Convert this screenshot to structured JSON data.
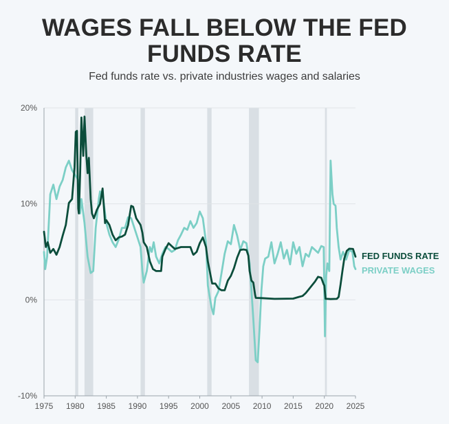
{
  "title_line1": "WAGES FALL BELOW THE FED",
  "title_line2": "FUNDS RATE",
  "subtitle": "Fed funds rate vs. private industries wages and salaries",
  "colors": {
    "fed": "#0b4d3b",
    "wages": "#7ccfc6",
    "recession": "#d9dfe4",
    "grid": "#dfe3e7",
    "axis": "#9aa3aa"
  },
  "chart_data": {
    "type": "line",
    "title": "WAGES FALL BELOW THE FED FUNDS RATE",
    "subtitle": "Fed funds rate vs. private industries wages and salaries",
    "xlim": [
      1975,
      2025
    ],
    "ylim": [
      -10,
      20
    ],
    "x_ticks": [
      1975,
      1980,
      1985,
      1990,
      1995,
      2000,
      2005,
      2010,
      2015,
      2020,
      2025
    ],
    "y_ticks": [
      {
        "v": 20,
        "label": "20%"
      },
      {
        "v": 10,
        "label": "10%"
      },
      {
        "v": 0,
        "label": "0%"
      },
      {
        "v": -10,
        "label": "-10%"
      }
    ],
    "grid": true,
    "recessions": [
      [
        1980.0,
        1980.5
      ],
      [
        1981.5,
        1982.9
      ],
      [
        1990.5,
        1991.2
      ],
      [
        2001.2,
        2001.9
      ],
      [
        2007.9,
        2009.5
      ],
      [
        2020.1,
        2020.4
      ]
    ],
    "series": [
      {
        "name": "FED FUNDS RATE",
        "color": "#0b4d3b",
        "x": [
          1975.0,
          1975.3,
          1975.6,
          1976.0,
          1976.5,
          1977.0,
          1977.5,
          1978.0,
          1978.5,
          1979.0,
          1979.5,
          1979.9,
          1980.1,
          1980.3,
          1980.5,
          1980.6,
          1980.8,
          1981.0,
          1981.3,
          1981.5,
          1981.8,
          1982.0,
          1982.2,
          1982.5,
          1982.7,
          1983.0,
          1983.5,
          1984.0,
          1984.4,
          1984.8,
          1985.0,
          1985.5,
          1986.0,
          1986.5,
          1987.0,
          1987.5,
          1988.0,
          1988.5,
          1989.0,
          1989.3,
          1989.8,
          1990.5,
          1990.8,
          1991.0,
          1991.5,
          1992.0,
          1992.5,
          1993.0,
          1993.8,
          1994.0,
          1994.5,
          1995.0,
          1995.5,
          1996.0,
          1997.0,
          1998.0,
          1998.5,
          1998.9,
          1999.0,
          1999.5,
          2000.0,
          2000.5,
          2001.0,
          2001.3,
          2001.6,
          2001.9,
          2002.0,
          2002.5,
          2003.0,
          2003.5,
          2004.0,
          2004.5,
          2005.0,
          2005.5,
          2006.0,
          2006.5,
          2007.0,
          2007.5,
          2007.8,
          2008.0,
          2008.3,
          2008.6,
          2008.9,
          2009.0,
          2010.0,
          2012.0,
          2015.0,
          2015.9,
          2016.5,
          2017.0,
          2017.5,
          2018.0,
          2018.5,
          2019.0,
          2019.5,
          2019.9,
          2020.0,
          2020.2,
          2020.5,
          2021.0,
          2022.0,
          2022.3,
          2022.6,
          2022.9,
          2023.2,
          2023.6,
          2024.0,
          2024.6,
          2024.9,
          2025.0
        ],
        "values": [
          7.1,
          5.5,
          6.0,
          4.9,
          5.3,
          4.7,
          5.5,
          6.7,
          7.8,
          10.1,
          10.5,
          13.8,
          17.5,
          17.6,
          9.5,
          9.0,
          13.0,
          19.0,
          15.0,
          19.1,
          15.0,
          13.2,
          14.8,
          10.5,
          9.0,
          8.5,
          9.4,
          10.0,
          11.6,
          8.0,
          8.3,
          7.8,
          6.8,
          6.2,
          6.5,
          6.6,
          6.8,
          7.8,
          9.8,
          9.7,
          8.5,
          7.8,
          7.0,
          6.0,
          5.5,
          4.0,
          3.2,
          3.0,
          3.0,
          4.5,
          5.3,
          5.9,
          5.6,
          5.3,
          5.5,
          5.5,
          5.5,
          4.8,
          4.7,
          5.0,
          5.9,
          6.5,
          5.5,
          4.0,
          3.0,
          2.0,
          1.7,
          1.7,
          1.2,
          1.0,
          1.0,
          2.0,
          2.5,
          3.3,
          4.4,
          5.2,
          5.25,
          5.2,
          4.6,
          3.0,
          2.0,
          1.8,
          0.5,
          0.2,
          0.18,
          0.1,
          0.13,
          0.3,
          0.4,
          0.7,
          1.1,
          1.5,
          1.9,
          2.4,
          2.3,
          1.6,
          1.5,
          0.1,
          0.1,
          0.08,
          0.1,
          0.3,
          1.6,
          3.0,
          4.3,
          5.1,
          5.33,
          5.3,
          4.7,
          4.5
        ]
      },
      {
        "name": "PRIVATE WAGES",
        "color": "#7ccfc6",
        "x": [
          1975.0,
          1975.2,
          1975.5,
          1976.0,
          1976.5,
          1977.0,
          1977.5,
          1978.0,
          1978.5,
          1979.0,
          1979.5,
          1980.0,
          1980.5,
          1980.8,
          1981.0,
          1981.5,
          1982.0,
          1982.5,
          1982.9,
          1983.3,
          1983.8,
          1984.0,
          1984.5,
          1985.0,
          1985.5,
          1986.0,
          1986.5,
          1987.0,
          1987.5,
          1988.0,
          1988.5,
          1989.0,
          1989.5,
          1990.0,
          1990.5,
          1990.8,
          1991.0,
          1991.5,
          1992.0,
          1992.3,
          1992.6,
          1993.0,
          1993.5,
          1994.0,
          1994.5,
          1995.0,
          1995.5,
          1996.0,
          1996.5,
          1997.0,
          1997.5,
          1998.0,
          1998.5,
          1999.0,
          1999.5,
          2000.0,
          2000.5,
          2001.0,
          2001.3,
          2001.6,
          2001.9,
          2002.2,
          2002.5,
          2003.0,
          2003.5,
          2004.0,
          2004.5,
          2005.0,
          2005.5,
          2006.0,
          2006.5,
          2007.0,
          2007.5,
          2008.0,
          2008.3,
          2008.6,
          2009.0,
          2009.3,
          2009.6,
          2009.9,
          2010.2,
          2010.5,
          2011.0,
          2011.5,
          2012.0,
          2012.5,
          2013.0,
          2013.5,
          2014.0,
          2014.5,
          2015.0,
          2015.5,
          2016.0,
          2016.5,
          2017.0,
          2017.5,
          2018.0,
          2018.5,
          2019.0,
          2019.5,
          2019.9,
          2020.1,
          2020.3,
          2020.5,
          2020.8,
          2021.0,
          2021.3,
          2021.5,
          2021.8,
          2022.0,
          2022.3,
          2022.6,
          2023.0,
          2023.5,
          2024.0,
          2024.5,
          2024.8,
          2025.0
        ],
        "values": [
          5.0,
          3.2,
          4.5,
          11.0,
          12.0,
          10.5,
          11.8,
          12.5,
          13.8,
          14.5,
          13.5,
          13.0,
          12.5,
          9.0,
          10.5,
          8.0,
          4.5,
          2.8,
          3.0,
          7.5,
          10.5,
          11.3,
          10.5,
          8.0,
          6.8,
          6.0,
          5.5,
          6.3,
          7.5,
          7.5,
          8.6,
          8.5,
          7.5,
          6.5,
          5.5,
          3.0,
          1.8,
          3.0,
          5.5,
          5.0,
          6.0,
          4.5,
          3.8,
          4.8,
          5.5,
          5.3,
          5.0,
          5.2,
          6.2,
          6.8,
          7.5,
          7.3,
          8.2,
          7.5,
          8.0,
          9.2,
          8.5,
          6.0,
          1.5,
          0.3,
          -0.8,
          -1.5,
          0.2,
          0.9,
          2.8,
          4.8,
          6.1,
          5.8,
          7.8,
          6.7,
          5.2,
          6.1,
          5.9,
          3.8,
          1.0,
          -2.0,
          -6.3,
          -6.5,
          -3.0,
          1.0,
          3.5,
          4.3,
          4.5,
          6.0,
          3.8,
          4.8,
          6.0,
          4.3,
          5.2,
          3.7,
          6.0,
          4.8,
          5.5,
          3.5,
          4.8,
          4.5,
          5.5,
          5.2,
          4.9,
          5.6,
          5.5,
          -3.8,
          2.5,
          3.8,
          3.0,
          14.5,
          11.0,
          10.0,
          9.8,
          7.5,
          5.5,
          4.2,
          5.0,
          4.2,
          5.2,
          5.0,
          3.5,
          3.2
        ]
      }
    ]
  }
}
